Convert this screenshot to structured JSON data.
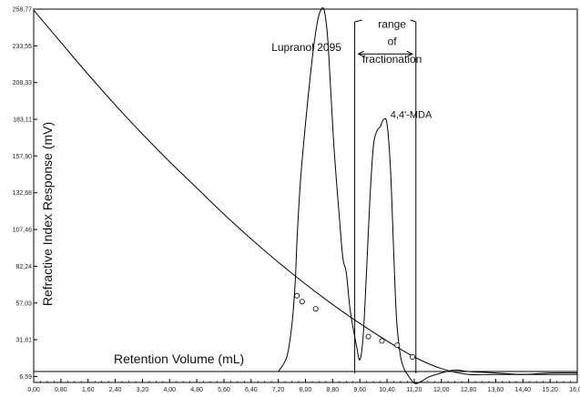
{
  "chart_data": {
    "type": "line",
    "title": "",
    "xlabel": "Retention Volume (mL)",
    "ylabel": "Refractive Index Response (mV)",
    "xlim": [
      0,
      16
    ],
    "ylim": [
      0,
      258.77
    ],
    "x_ticks": [
      "0,00",
      "0,80",
      "1,60",
      "2,40",
      "3,20",
      "4,00",
      "4,80",
      "5,60",
      "6,40",
      "7,20",
      "8,00",
      "8,80",
      "9,60",
      "10,40",
      "11,20",
      "12,00",
      "12,80",
      "13,60",
      "14,40",
      "15,20",
      "16,00"
    ],
    "x_tick_values": [
      0,
      0.8,
      1.6,
      2.4,
      3.2,
      4.0,
      4.8,
      5.6,
      6.4,
      7.2,
      8.0,
      8.8,
      9.6,
      10.4,
      11.2,
      12.0,
      12.8,
      13.6,
      14.4,
      15.2,
      16.0
    ],
    "y_ticks": [
      "6,59",
      "31,81",
      "57,03",
      "82,24",
      "107,46",
      "132,68",
      "157,90",
      "183,11",
      "208,33",
      "233,55",
      "258,77"
    ],
    "y_tick_values": [
      6.59,
      31.81,
      57.03,
      82.24,
      107.46,
      132.68,
      157.9,
      183.11,
      208.33,
      233.55,
      258.77
    ],
    "series": [
      {
        "name": "",
        "x": [
          7.2,
          7.45,
          7.6,
          7.7,
          7.75,
          7.85,
          8.0,
          8.2,
          8.35,
          8.45,
          8.55,
          8.65,
          8.75,
          8.85,
          9.0,
          9.1,
          9.2,
          9.3,
          9.4,
          9.5,
          9.6,
          9.7,
          9.8,
          9.9,
          10.0,
          10.1,
          10.2,
          10.3,
          10.4,
          10.5,
          10.6,
          10.65,
          10.7,
          10.8,
          10.9,
          11.0,
          11.2,
          11.4,
          11.6,
          12.0,
          12.4,
          12.8,
          13.6,
          14.4,
          15.2,
          16.0
        ],
        "y": [
          10,
          20,
          42,
          72,
          100,
          140,
          180,
          225,
          250,
          258,
          258,
          240,
          200,
          160,
          115,
          88,
          78,
          55,
          40,
          28,
          18,
          35,
          80,
          130,
          165,
          175,
          178,
          183,
          180,
          150,
          90,
          60,
          40,
          20,
          12,
          8,
          2,
          3,
          6,
          9,
          11,
          10,
          9,
          8,
          9,
          9
        ]
      },
      {
        "name": "",
        "x": [
          0,
          0.8,
          1.6,
          2.4,
          3.2,
          4.0,
          4.8,
          5.6,
          6.4,
          7.2,
          8.0,
          8.8,
          9.6,
          10.4,
          11.2,
          12.0,
          12.8,
          13.6,
          14.4,
          15.2,
          16.0
        ],
        "y": [
          258,
          236,
          214,
          193,
          173,
          154,
          136,
          118,
          101,
          85,
          70,
          56,
          43,
          31,
          20,
          12,
          8,
          8,
          8,
          8,
          8
        ]
      }
    ],
    "baseline": {
      "y": 10
    },
    "markers": [
      {
        "x": 7.75,
        "y": 62
      },
      {
        "x": 7.9,
        "y": 58
      },
      {
        "x": 8.3,
        "y": 53
      },
      {
        "x": 9.85,
        "y": 34
      },
      {
        "x": 10.25,
        "y": 31
      },
      {
        "x": 10.7,
        "y": 28
      },
      {
        "x": 11.15,
        "y": 20
      }
    ],
    "fractionation_range": {
      "x_start": 9.45,
      "x_end": 11.25
    },
    "annotations": [
      {
        "id": "lupranol",
        "text": "Lupranol 2095",
        "x": 7.0,
        "y": 230
      },
      {
        "id": "range-1",
        "text": "range",
        "x": 10.55,
        "y": 246
      },
      {
        "id": "range-2",
        "text": "of",
        "x": 10.55,
        "y": 234
      },
      {
        "id": "range-3",
        "text": "fractionation",
        "x": 10.55,
        "y": 222
      },
      {
        "id": "mda",
        "text": "4,4'-MDA",
        "x": 10.5,
        "y": 184
      }
    ]
  }
}
